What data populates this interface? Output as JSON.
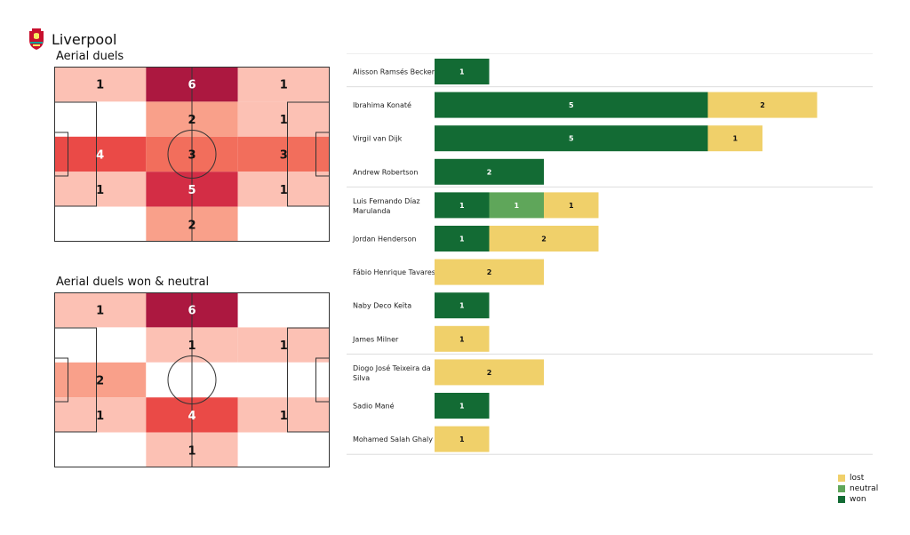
{
  "team": {
    "name": "Liverpool",
    "crest_icon": "liverpool-crest-icon"
  },
  "colors": {
    "won": "#136b34",
    "neutral": "#5fa65a",
    "lost": "#f0d06a",
    "heat_scale": [
      "#ffffff",
      "#fcc1b4",
      "#f9a08a",
      "#f26e5c",
      "#ea4a47",
      "#d32d45",
      "#ac1840"
    ]
  },
  "pitches": [
    {
      "title": "Aerial duels",
      "grid": [
        [
          1,
          6,
          1
        ],
        [
          0,
          2,
          1
        ],
        [
          4,
          3,
          3
        ],
        [
          1,
          5,
          1
        ],
        [
          0,
          2,
          0
        ]
      ]
    },
    {
      "title": "Aerial duels won & neutral",
      "grid": [
        [
          1,
          6,
          0
        ],
        [
          0,
          1,
          1
        ],
        [
          2,
          0,
          0
        ],
        [
          1,
          4,
          1
        ],
        [
          0,
          1,
          0
        ]
      ]
    }
  ],
  "chart_data": {
    "type": "bar",
    "orientation": "horizontal",
    "stacked": true,
    "categories": [
      "Alisson Ramsés Becker",
      "Ibrahima Konaté",
      "Virgil van Dijk",
      "Andrew Robertson",
      "Luis Fernando Díaz Marulanda",
      "Jordan Henderson",
      "Fábio Henrique Tavares",
      "Naby Deco Keïta",
      "James Milner",
      "Diogo José Teixeira da Silva",
      "Sadio Mané",
      "Mohamed  Salah Ghaly"
    ],
    "series": [
      {
        "name": "won",
        "values": [
          1,
          5,
          5,
          2,
          1,
          1,
          0,
          1,
          0,
          0,
          1,
          0
        ]
      },
      {
        "name": "neutral",
        "values": [
          0,
          0,
          0,
          0,
          1,
          0,
          0,
          0,
          0,
          0,
          0,
          0
        ]
      },
      {
        "name": "lost",
        "values": [
          0,
          2,
          1,
          0,
          1,
          2,
          2,
          0,
          1,
          2,
          0,
          1
        ]
      }
    ],
    "xlim": [
      0,
      7.5
    ],
    "group_separators_after": [
      0,
      3,
      8,
      11
    ],
    "legend": {
      "placement": "bottom-right",
      "entries": [
        "lost",
        "neutral",
        "won"
      ]
    }
  }
}
